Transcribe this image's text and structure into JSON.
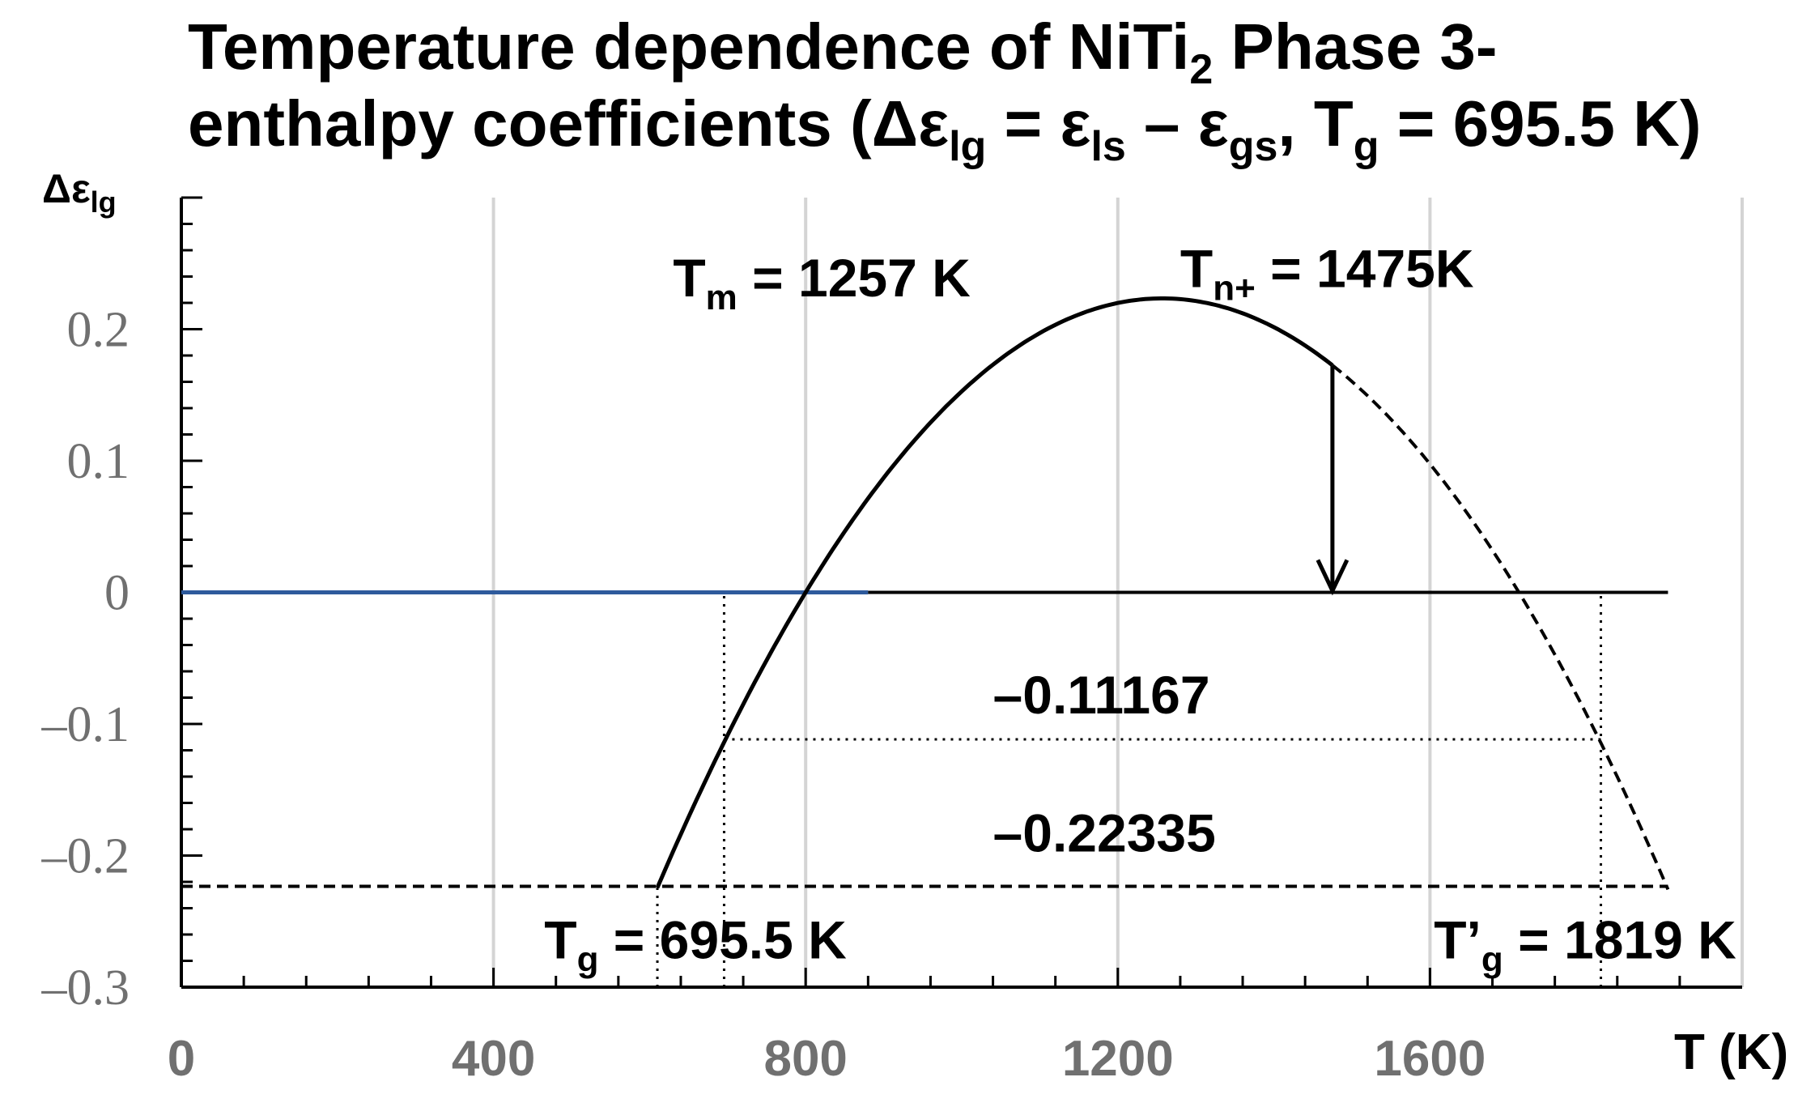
{
  "chart_data": {
    "type": "line",
    "title_parts": {
      "line1_a": "Temperature dependence of NiTi",
      "line1_sub": "2",
      "line1_b": " Phase 3-",
      "line2_a": "enthalpy  coefficients (Δε",
      "line2_sub1": "lg",
      "line2_b": " = ε",
      "line2_sub2": "ls",
      "line2_c": " – ε",
      "line2_sub3": "gs",
      "line2_d": ", T",
      "line2_sub4": "g",
      "line2_e": " = 695.5 K)"
    },
    "ylabel": {
      "main": "Δε",
      "sub": "lg"
    },
    "xlabel": "T (K)",
    "xlim": [
      0,
      2000
    ],
    "ylim": [
      -0.3,
      0.3
    ],
    "x_ticks": [
      0,
      400,
      800,
      1200,
      1600
    ],
    "x_tick_labels": [
      "0",
      "400",
      "800",
      "1200",
      "1600"
    ],
    "y_ticks": [
      0.2,
      0.1,
      0,
      -0.1,
      -0.2,
      -0.3
    ],
    "y_tick_labels": [
      "0.2",
      "0.1",
      "0",
      "–0.1",
      "–0.2",
      "–0.3"
    ],
    "grid_x": [
      400,
      800,
      1200,
      1600,
      2000
    ],
    "curve": {
      "peak_T": 1257,
      "peak_value": 0.2234,
      "zero_T": 800,
      "solid_range": [
        610,
        1475
      ],
      "dashed_range": [
        1475,
        1905
      ]
    },
    "zero_line": {
      "blue_range": [
        0,
        880
      ],
      "black_range": [
        880,
        1905
      ],
      "value": 0,
      "blue_color": "#2e5a9c"
    },
    "hlines": [
      {
        "value": -0.22335,
        "range": [
          0,
          1905
        ],
        "style": "dashed"
      },
      {
        "value": -0.11167,
        "range": [
          695.5,
          1819
        ],
        "style": "dotted"
      }
    ],
    "vlines": [
      {
        "T": 610,
        "from": -0.3,
        "to": -0.22335
      },
      {
        "T": 695.5,
        "from": -0.3,
        "to": 0
      },
      {
        "T": 1819,
        "from": -0.3,
        "to": 0
      }
    ],
    "arrow": {
      "T": 1475,
      "from": 0.172,
      "to": 0
    },
    "annotations": [
      {
        "main": "T",
        "sub": "m",
        "rest": " = 1257 K",
        "x": 630,
        "y": 0.225
      },
      {
        "main": "T",
        "sub": "n+",
        "rest": " = 1475K",
        "x": 1280,
        "y": 0.232
      },
      {
        "main": "–0.11167",
        "sub": "",
        "rest": "",
        "x": 1040,
        "y": -0.092
      },
      {
        "main": "–0.22335",
        "sub": "",
        "rest": "",
        "x": 1040,
        "y": -0.197
      },
      {
        "main": "T",
        "sub": "g",
        "rest": " = 695.5 K",
        "x": 465,
        "y": -0.278
      },
      {
        "main": "T’",
        "sub": "g",
        "rest": " = 1819 K",
        "x": 1605,
        "y": -0.278
      }
    ]
  }
}
